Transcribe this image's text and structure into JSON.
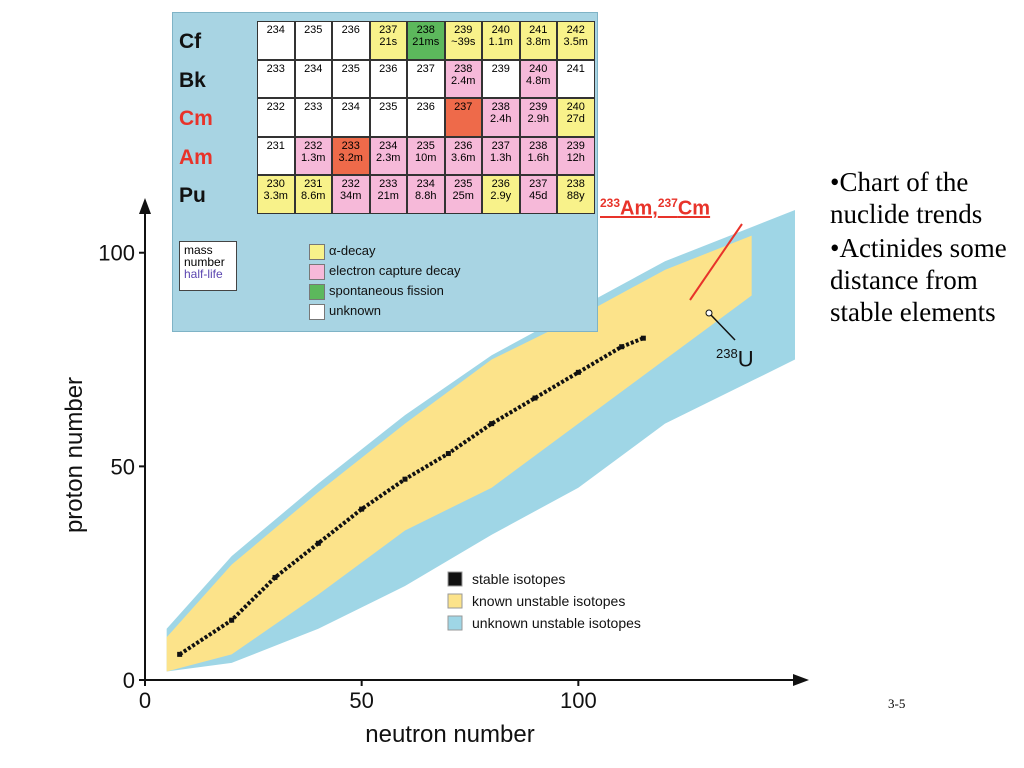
{
  "bullets": [
    "•Chart of the nuclide trends",
    "•Actinides some distance from stable elements"
  ],
  "slide_number": "3-5",
  "annotations": {
    "am_cm": {
      "sup1": "233",
      "t1": "Am,",
      "sup2": "237",
      "t2": "Cm"
    },
    "u238": {
      "sup": "238",
      "t": "U"
    }
  },
  "chart_data": {
    "type": "area",
    "xlabel": "neutron number",
    "ylabel": "proton number",
    "xlim": [
      0,
      150
    ],
    "ylim": [
      0,
      110
    ],
    "xticks": [
      0,
      50,
      100
    ],
    "yticks": [
      0,
      50,
      100
    ],
    "grid": false,
    "legend_position": "bottom-right",
    "series": [
      {
        "name": "stable isotopes",
        "color": "#111111",
        "x": [
          8,
          20,
          30,
          40,
          50,
          60,
          70,
          80,
          90,
          100,
          110,
          115
        ],
        "y": [
          6,
          14,
          24,
          32,
          40,
          47,
          53,
          60,
          66,
          72,
          78,
          80
        ]
      },
      {
        "name": "known unstable isotopes",
        "color": "#fce38a",
        "x_low": [
          5,
          20,
          40,
          60,
          80,
          100,
          120,
          140
        ],
        "y_upper": [
          10,
          27,
          44,
          60,
          75,
          85,
          96,
          104
        ],
        "y_lower": [
          2,
          6,
          20,
          35,
          45,
          60,
          75,
          90
        ]
      },
      {
        "name": "unknown unstable isotopes",
        "color": "#9fd6e6",
        "x": [
          5,
          20,
          40,
          60,
          80,
          100,
          120,
          140,
          150
        ],
        "y_upper": [
          12,
          29,
          46,
          62,
          76,
          87,
          98,
          106,
          110
        ],
        "y_lower": [
          2,
          4,
          12,
          22,
          34,
          45,
          60,
          70,
          75
        ]
      }
    ]
  },
  "inset": {
    "elements": [
      {
        "sym": "Cf",
        "color": "#111111"
      },
      {
        "sym": "Bk",
        "color": "#111111"
      },
      {
        "sym": "Cm",
        "color": "#e8332a"
      },
      {
        "sym": "Am",
        "color": "#e8332a"
      },
      {
        "sym": "Pu",
        "color": "#111111"
      }
    ],
    "rows": [
      [
        {
          "m": "234",
          "h": "",
          "c": "w"
        },
        {
          "m": "235",
          "h": "",
          "c": "w"
        },
        {
          "m": "236",
          "h": "",
          "c": "w"
        },
        {
          "m": "237",
          "h": "21s",
          "c": "y"
        },
        {
          "m": "238",
          "h": "21ms",
          "c": "g"
        },
        {
          "m": "239",
          "h": "~39s",
          "c": "y"
        },
        {
          "m": "240",
          "h": "1.1m",
          "c": "y"
        },
        {
          "m": "241",
          "h": "3.8m",
          "c": "y"
        },
        {
          "m": "242",
          "h": "3.5m",
          "c": "y"
        }
      ],
      [
        {
          "m": "233",
          "h": "",
          "c": "w"
        },
        {
          "m": "234",
          "h": "",
          "c": "w"
        },
        {
          "m": "235",
          "h": "",
          "c": "w"
        },
        {
          "m": "236",
          "h": "",
          "c": "w"
        },
        {
          "m": "237",
          "h": "",
          "c": "w"
        },
        {
          "m": "238",
          "h": "2.4m",
          "c": "p"
        },
        {
          "m": "239",
          "h": "",
          "c": "w"
        },
        {
          "m": "240",
          "h": "4.8m",
          "c": "p"
        },
        {
          "m": "241",
          "h": "",
          "c": "w"
        }
      ],
      [
        {
          "m": "232",
          "h": "",
          "c": "w"
        },
        {
          "m": "233",
          "h": "",
          "c": "w"
        },
        {
          "m": "234",
          "h": "",
          "c": "w"
        },
        {
          "m": "235",
          "h": "",
          "c": "w"
        },
        {
          "m": "236",
          "h": "",
          "c": "w"
        },
        {
          "m": "237",
          "h": "",
          "c": "o"
        },
        {
          "m": "238",
          "h": "2.4h",
          "c": "p"
        },
        {
          "m": "239",
          "h": "2.9h",
          "c": "p"
        },
        {
          "m": "240",
          "h": "27d",
          "c": "y"
        }
      ],
      [
        {
          "m": "231",
          "h": "",
          "c": "w"
        },
        {
          "m": "232",
          "h": "1.3m",
          "c": "p"
        },
        {
          "m": "233",
          "h": "3.2m",
          "c": "o"
        },
        {
          "m": "234",
          "h": "2.3m",
          "c": "p"
        },
        {
          "m": "235",
          "h": "10m",
          "c": "p"
        },
        {
          "m": "236",
          "h": "3.6m",
          "c": "p"
        },
        {
          "m": "237",
          "h": "1.3h",
          "c": "p"
        },
        {
          "m": "238",
          "h": "1.6h",
          "c": "p"
        },
        {
          "m": "239",
          "h": "12h",
          "c": "p"
        }
      ],
      [
        {
          "m": "230",
          "h": "3.3m",
          "c": "y"
        },
        {
          "m": "231",
          "h": "8.6m",
          "c": "y"
        },
        {
          "m": "232",
          "h": "34m",
          "c": "p"
        },
        {
          "m": "233",
          "h": "21m",
          "c": "p"
        },
        {
          "m": "234",
          "h": "8.8h",
          "c": "p"
        },
        {
          "m": "235",
          "h": "25m",
          "c": "p"
        },
        {
          "m": "236",
          "h": "2.9y",
          "c": "y"
        },
        {
          "m": "237",
          "h": "45d",
          "c": "p"
        },
        {
          "m": "238",
          "h": "88y",
          "c": "y"
        }
      ]
    ],
    "colors": {
      "w": "#ffffff",
      "y": "#f8f28a",
      "p": "#f6b9d9",
      "g": "#5cb85c",
      "o": "#ee6a4a"
    },
    "key": {
      "line1": "mass",
      "line2": "number",
      "line3": "half-life"
    },
    "legend": [
      {
        "label": "α-decay",
        "color": "#f8f28a"
      },
      {
        "label": "electron capture decay",
        "color": "#f6b9d9"
      },
      {
        "label": "spontaneous fission",
        "color": "#5cb85c"
      },
      {
        "label": "unknown",
        "color": "#ffffff"
      }
    ]
  }
}
